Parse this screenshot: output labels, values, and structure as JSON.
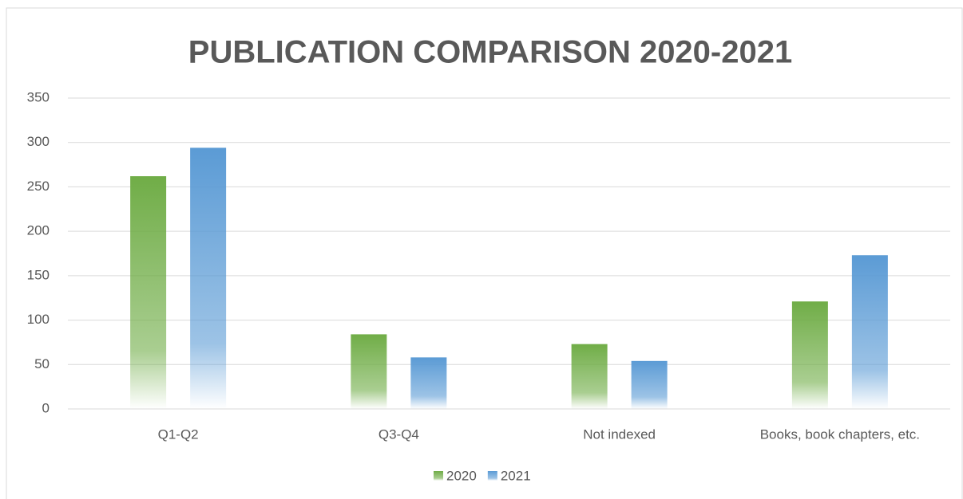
{
  "chart_data": {
    "type": "bar",
    "title": "PUBLICATION COMPARISON 2020-2021",
    "categories": [
      "Q1-Q2",
      "Q3-Q4",
      "Not indexed",
      "Books, book chapters, etc."
    ],
    "series": [
      {
        "name": "2020",
        "color": "#70ad47",
        "values": [
          262,
          84,
          73,
          121
        ]
      },
      {
        "name": "2021",
        "color": "#5b9bd5",
        "values": [
          294,
          58,
          54,
          173
        ]
      }
    ],
    "ylim": [
      0,
      350
    ],
    "yticks": [
      0,
      50,
      100,
      150,
      200,
      250,
      300,
      350
    ],
    "grid": true,
    "legend": "bottom"
  }
}
